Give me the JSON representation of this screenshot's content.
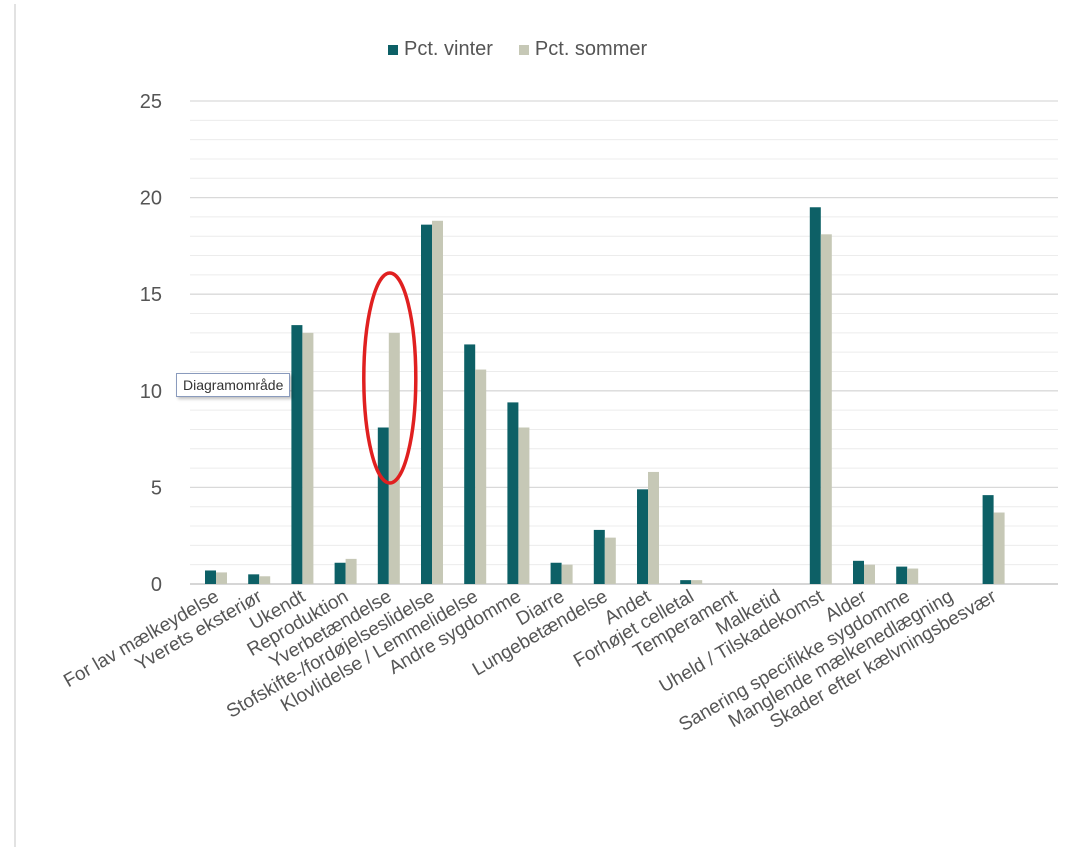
{
  "tooltip": {
    "text": "Diagramområde"
  },
  "colors": {
    "winter": "#0d6066",
    "summer": "#c6c8b6",
    "grid_major": "#d9d9d9",
    "grid_minor": "#ececec",
    "axis_text": "#555555",
    "highlight": "#e02020"
  },
  "annotation": {
    "type": "ellipse-highlight",
    "target_category": "Yverbetændelse",
    "color": "#e02020"
  },
  "chart_data": {
    "type": "bar",
    "title": "",
    "xlabel": "",
    "ylabel": "",
    "ylim": [
      0,
      25
    ],
    "yticks": [
      0,
      5,
      10,
      15,
      20,
      25
    ],
    "grid": "on",
    "legend_position": "top-center",
    "categories": [
      "For lav mælkeydelse",
      "Yverets eksteriør",
      "Ukendt",
      "Reproduktion",
      "Yverbetændelse",
      "Stofskifte-/fordøjelseslidelse",
      "Klovlidelse / Lemmelidelse",
      "Andre sygdomme",
      "Diarre",
      "Lungebetændelse",
      "Andet",
      "Forhøjet celletal",
      "Temperament",
      "Malketid",
      "Uheld / Tilskadekomst",
      "Alder",
      "Sanering specifikke sygdomme",
      "Manglende mælkenedlægning",
      "Skader efter kælvningsbesvær"
    ],
    "series": [
      {
        "name": "Pct. vinter",
        "color": "#0d6066",
        "values": [
          0.7,
          0.5,
          13.4,
          1.1,
          8.1,
          18.6,
          12.4,
          9.4,
          1.1,
          2.8,
          4.9,
          0.2,
          0,
          0,
          19.5,
          1.2,
          0.9,
          0,
          4.6
        ]
      },
      {
        "name": "Pct. sommer",
        "color": "#c6c8b6",
        "values": [
          0.6,
          0.4,
          13.0,
          1.3,
          13.0,
          18.8,
          11.1,
          8.1,
          1.0,
          2.4,
          5.8,
          0.2,
          0,
          0,
          18.1,
          1.0,
          0.8,
          0,
          3.7
        ]
      }
    ]
  }
}
